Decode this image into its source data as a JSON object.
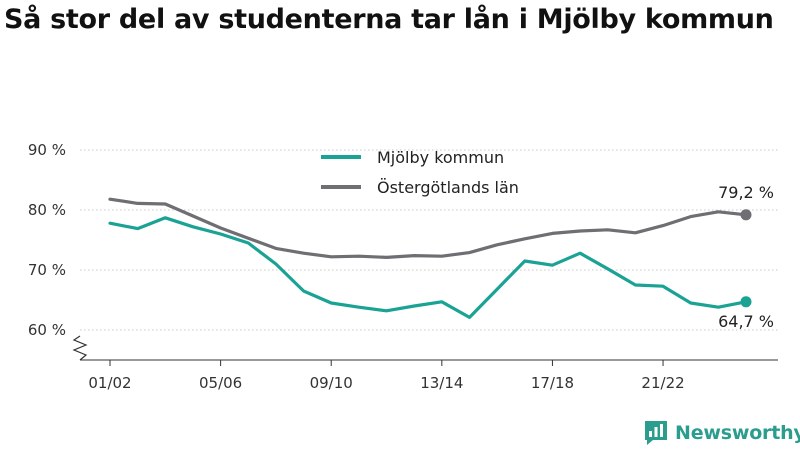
{
  "title": "Så stor del av studenterna tar lån i Mjölby kommun",
  "brand": {
    "name": "Newsworthy",
    "icon": "newsworthy-logo-icon",
    "color": "#2a9d8f"
  },
  "chart_data": {
    "type": "line",
    "title": "Så stor del av studenterna tar lån i Mjölby kommun",
    "xlabel": "",
    "ylabel": "",
    "ylim": [
      55,
      90
    ],
    "y_ticks": [
      60,
      70,
      80,
      90
    ],
    "y_tick_labels": [
      "60 %",
      "70 %",
      "80 %",
      "90 %"
    ],
    "y_axis_break": true,
    "x": [
      "01/02",
      "02/03",
      "03/04",
      "04/05",
      "05/06",
      "06/07",
      "07/08",
      "08/09",
      "09/10",
      "10/11",
      "11/12",
      "12/13",
      "13/14",
      "14/15",
      "15/16",
      "16/17",
      "17/18",
      "18/19",
      "19/20",
      "20/21",
      "21/22",
      "22/23",
      "23/24",
      "24/25"
    ],
    "x_tick_labels": [
      "01/02",
      "05/06",
      "09/10",
      "13/14",
      "17/18",
      "21/22"
    ],
    "grid": "horizontal",
    "legend_position": "top-center",
    "series": [
      {
        "name": "Mjölby kommun",
        "color": "#1aa394",
        "values": [
          77.8,
          76.9,
          78.7,
          77.2,
          76.0,
          74.5,
          71.0,
          66.5,
          64.5,
          63.8,
          63.2,
          64.0,
          64.7,
          62.1,
          66.8,
          71.5,
          70.8,
          72.8,
          70.2,
          67.5,
          67.3,
          64.5,
          63.8,
          64.7
        ],
        "end_label": "64,7 %"
      },
      {
        "name": "Östergötlands län",
        "color": "#6e6e73",
        "values": [
          81.8,
          81.1,
          81.0,
          79.0,
          77.0,
          75.3,
          73.6,
          72.8,
          72.2,
          72.3,
          72.1,
          72.4,
          72.3,
          72.9,
          74.2,
          75.2,
          76.1,
          76.5,
          76.7,
          76.2,
          77.4,
          78.9,
          79.7,
          79.2
        ],
        "end_label": "79,2 %"
      }
    ]
  }
}
